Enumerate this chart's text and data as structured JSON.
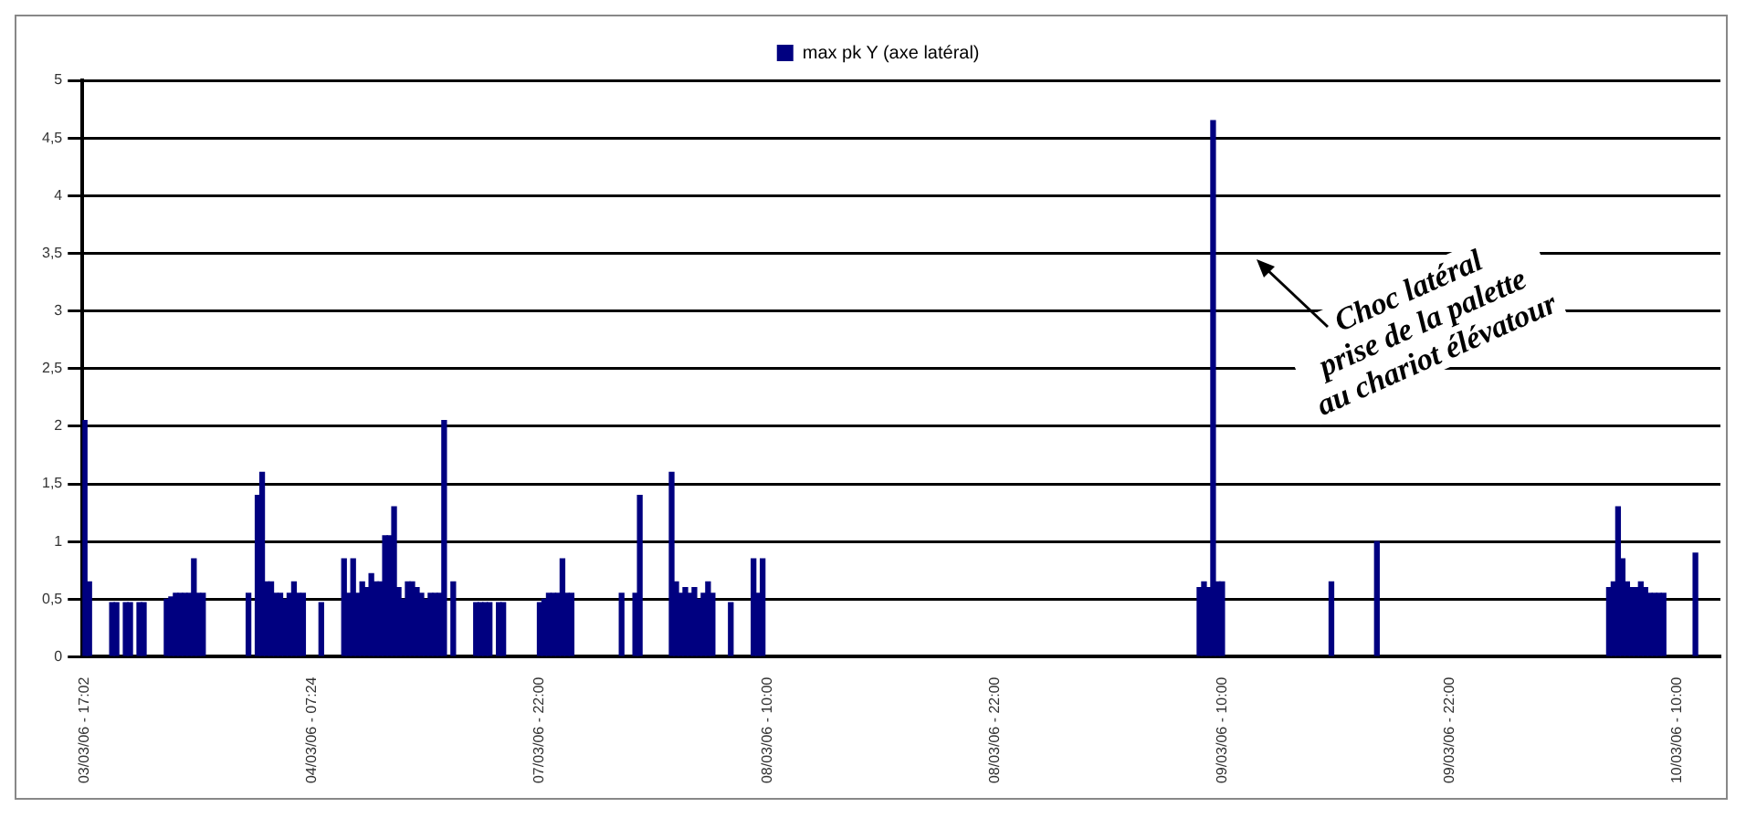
{
  "chart_data": {
    "type": "bar",
    "legend": "top",
    "grid": "y",
    "categories": [
      "03/03/06 - 17:02",
      null,
      null,
      null,
      null,
      null,
      null,
      null,
      null,
      null,
      null,
      null,
      null,
      null,
      null,
      null,
      null,
      null,
      null,
      null,
      null,
      null,
      null,
      null,
      null,
      null,
      null,
      null,
      null,
      null,
      null,
      null,
      null,
      null,
      null,
      null,
      null,
      null,
      null,
      null,
      null,
      null,
      null,
      null,
      null,
      null,
      null,
      null,
      null,
      null,
      "04/03/06 - 07:24",
      null,
      null,
      null,
      null,
      null,
      null,
      null,
      null,
      null,
      null,
      null,
      null,
      null,
      null,
      null,
      null,
      null,
      null,
      null,
      null,
      null,
      null,
      null,
      null,
      null,
      null,
      null,
      null,
      null,
      null,
      null,
      null,
      null,
      null,
      null,
      null,
      null,
      null,
      null,
      null,
      null,
      null,
      null,
      null,
      null,
      null,
      null,
      null,
      null,
      "07/03/06 - 22:00",
      null,
      null,
      null,
      null,
      null,
      null,
      null,
      null,
      null,
      null,
      null,
      null,
      null,
      null,
      null,
      null,
      null,
      null,
      null,
      null,
      null,
      null,
      null,
      null,
      null,
      null,
      null,
      null,
      null,
      null,
      null,
      null,
      null,
      null,
      null,
      null,
      null,
      null,
      null,
      null,
      null,
      null,
      null,
      null,
      null,
      null,
      null,
      null,
      null,
      "08/03/06 - 10:00",
      null,
      null,
      null,
      null,
      null,
      null,
      null,
      null,
      null,
      null,
      null,
      null,
      null,
      null,
      null,
      null,
      null,
      null,
      null,
      null,
      null,
      null,
      null,
      null,
      null,
      null,
      null,
      null,
      null,
      null,
      null,
      null,
      null,
      null,
      null,
      null,
      null,
      null,
      null,
      null,
      null,
      null,
      null,
      null,
      null,
      null,
      null,
      null,
      null,
      "08/03/06 - 22:00",
      null,
      null,
      null,
      null,
      null,
      null,
      null,
      null,
      null,
      null,
      null,
      null,
      null,
      null,
      null,
      null,
      null,
      null,
      null,
      null,
      null,
      null,
      null,
      null,
      null,
      null,
      null,
      null,
      null,
      null,
      null,
      null,
      null,
      null,
      null,
      null,
      null,
      null,
      null,
      null,
      null,
      null,
      null,
      null,
      null,
      null,
      null,
      null,
      null,
      "09/03/06 - 10:00",
      null,
      null,
      null,
      null,
      null,
      null,
      null,
      null,
      null,
      null,
      null,
      null,
      null,
      null,
      null,
      null,
      null,
      null,
      null,
      null,
      null,
      null,
      null,
      null,
      null,
      null,
      null,
      null,
      null,
      null,
      null,
      null,
      null,
      null,
      null,
      null,
      null,
      null,
      null,
      null,
      null,
      null,
      null,
      null,
      null,
      null,
      null,
      null,
      null,
      "09/03/06 - 22:00",
      null,
      null,
      null,
      null,
      null,
      null,
      null,
      null,
      null,
      null,
      null,
      null,
      null,
      null,
      null,
      null,
      null,
      null,
      null,
      null,
      null,
      null,
      null,
      null,
      null,
      null,
      null,
      null,
      null,
      null,
      null,
      null,
      null,
      null,
      null,
      null,
      null,
      null,
      null,
      null,
      null,
      null,
      null,
      null,
      null,
      null,
      null,
      null,
      null,
      "10/03/06 - 10:00",
      null,
      null,
      null,
      null,
      null,
      null,
      null,
      null,
      null
    ],
    "series": [
      {
        "name": "max pk Y (axe latéral)",
        "color": "#000080",
        "values": [
          2.05,
          0.65,
          null,
          null,
          null,
          null,
          0.47,
          0.47,
          null,
          0.47,
          0.47,
          null,
          0.47,
          0.47,
          null,
          null,
          null,
          null,
          0.5,
          0.52,
          0.55,
          0.55,
          0.55,
          0.55,
          0.85,
          0.55,
          0.55,
          null,
          null,
          null,
          null,
          null,
          null,
          null,
          null,
          null,
          0.55,
          null,
          1.4,
          1.6,
          0.65,
          0.65,
          0.55,
          0.55,
          0.5,
          0.55,
          0.65,
          0.55,
          0.55,
          null,
          null,
          null,
          0.47,
          null,
          null,
          null,
          null,
          0.85,
          0.55,
          0.85,
          0.55,
          0.65,
          0.6,
          0.72,
          0.65,
          0.65,
          1.05,
          1.05,
          1.3,
          0.6,
          0.5,
          0.65,
          0.65,
          0.6,
          0.55,
          0.5,
          0.55,
          0.55,
          0.55,
          2.05,
          null,
          0.65,
          null,
          null,
          null,
          null,
          0.47,
          0.47,
          0.47,
          0.47,
          null,
          0.47,
          0.47,
          null,
          null,
          null,
          null,
          null,
          null,
          null,
          0.47,
          0.5,
          0.55,
          0.55,
          0.55,
          0.85,
          0.55,
          0.55,
          null,
          null,
          null,
          null,
          null,
          null,
          null,
          null,
          null,
          null,
          0.55,
          null,
          null,
          0.55,
          1.4,
          null,
          null,
          null,
          null,
          null,
          null,
          1.6,
          0.65,
          0.55,
          0.6,
          0.55,
          0.6,
          0.5,
          0.55,
          0.65,
          0.55,
          null,
          null,
          null,
          0.47,
          null,
          null,
          null,
          null,
          0.85,
          0.55,
          0.85,
          null,
          null,
          null,
          null,
          null,
          null,
          null,
          null,
          null,
          null,
          null,
          null,
          null,
          null,
          null,
          null,
          null,
          null,
          null,
          null,
          null,
          null,
          null,
          null,
          null,
          null,
          null,
          null,
          null,
          null,
          null,
          null,
          null,
          null,
          null,
          null,
          null,
          null,
          null,
          null,
          null,
          null,
          null,
          null,
          null,
          null,
          null,
          null,
          null,
          null,
          null,
          null,
          null,
          null,
          null,
          null,
          null,
          null,
          null,
          null,
          null,
          null,
          null,
          null,
          null,
          null,
          null,
          null,
          null,
          null,
          null,
          null,
          null,
          null,
          null,
          null,
          null,
          null,
          null,
          null,
          null,
          null,
          null,
          null,
          null,
          null,
          null,
          null,
          null,
          null,
          null,
          null,
          null,
          null,
          null,
          0.6,
          0.65,
          0.6,
          4.65,
          0.65,
          0.65,
          null,
          null,
          null,
          null,
          null,
          null,
          null,
          null,
          null,
          null,
          null,
          null,
          null,
          null,
          null,
          null,
          null,
          null,
          null,
          null,
          null,
          null,
          null,
          0.65,
          null,
          null,
          null,
          null,
          null,
          null,
          null,
          null,
          null,
          1.0,
          null,
          null,
          null,
          null,
          null,
          null,
          null,
          null,
          null,
          null,
          null,
          null,
          null,
          null,
          null,
          null,
          null,
          null,
          null,
          null,
          null,
          null,
          null,
          null,
          null,
          null,
          null,
          null,
          null,
          null,
          null,
          null,
          null,
          null,
          null,
          null,
          null,
          null,
          null,
          null,
          null,
          null,
          null,
          null,
          null,
          null,
          null,
          null,
          null,
          null,
          0.6,
          0.65,
          1.3,
          0.85,
          0.65,
          0.6,
          0.6,
          0.65,
          0.6,
          0.55,
          0.55,
          0.55,
          0.55,
          null,
          null,
          null,
          null,
          null,
          null,
          0.9,
          null,
          null,
          null,
          null,
          null
        ]
      }
    ],
    "ylim": [
      0,
      5
    ],
    "yticks": [
      0,
      {
        "value": 0.5,
        "label": "0,5"
      },
      1,
      {
        "value": 1.5,
        "label": "1,5"
      },
      2,
      {
        "value": 2.5,
        "label": "2,5"
      },
      3,
      {
        "value": 3.5,
        "label": "3,5"
      },
      4,
      {
        "value": 4.5,
        "label": "4,5"
      },
      5
    ],
    "annotations": [
      "Choc latéral\nprise de la palette\nau chariot élévatour"
    ]
  }
}
